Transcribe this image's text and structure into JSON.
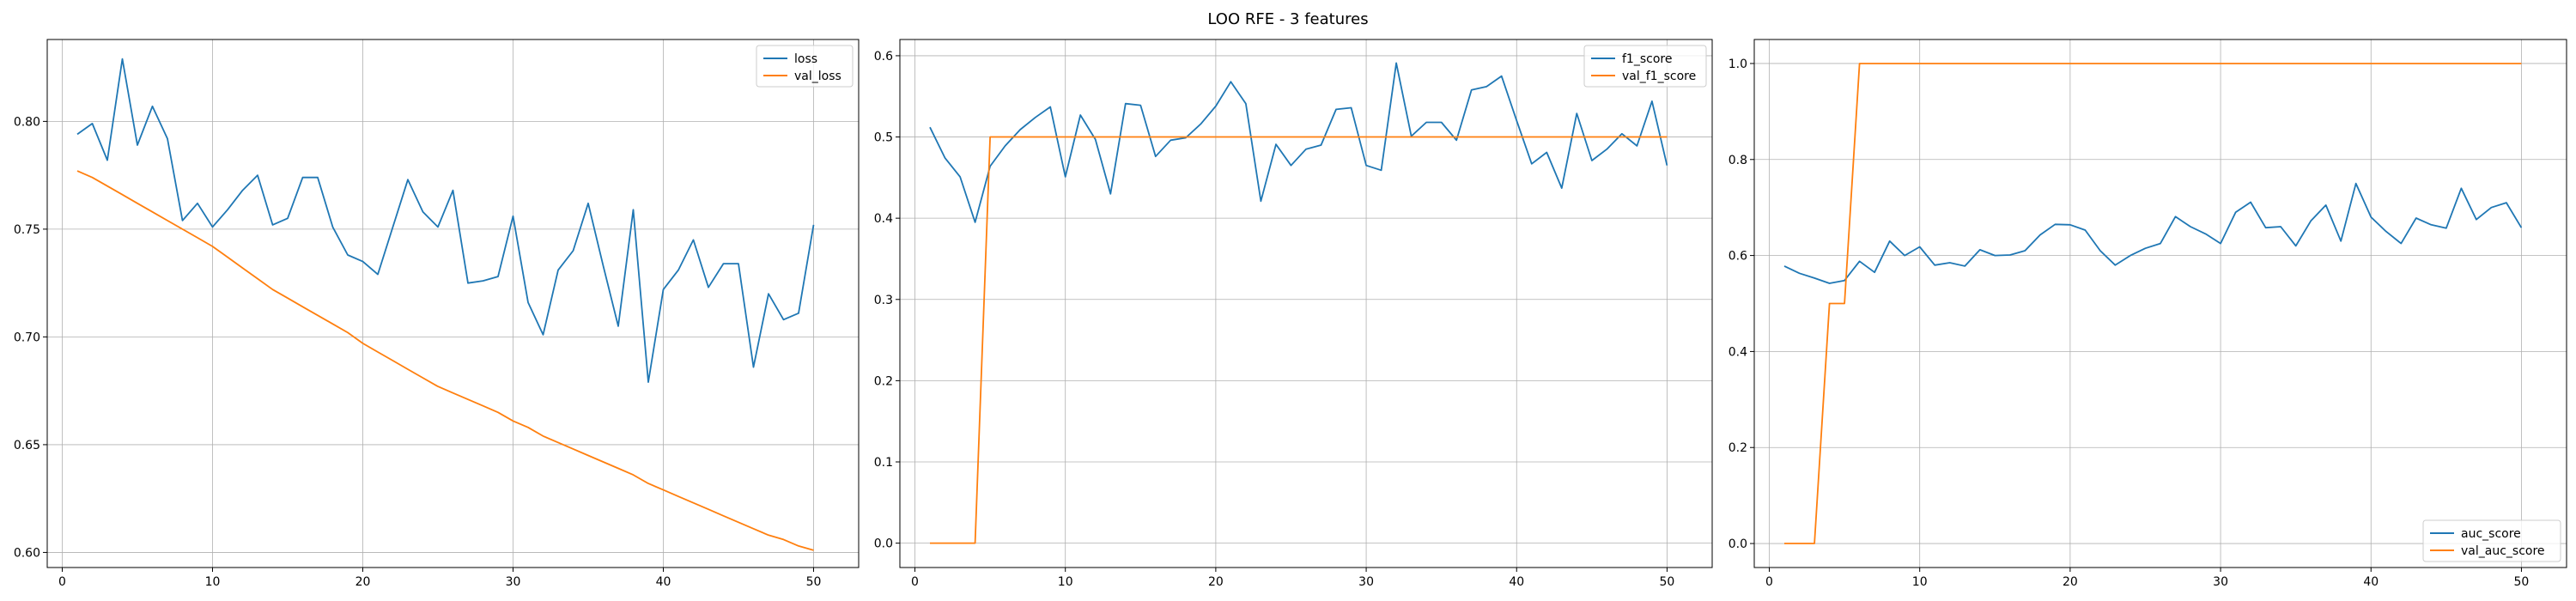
{
  "figure": {
    "title": "LOO RFE - 3 features"
  },
  "colors": {
    "series1": "#1f77b4",
    "series2": "#ff7f0e"
  },
  "chart_data": [
    {
      "type": "line",
      "xlim": [
        -1,
        53
      ],
      "ylim": [
        0.593,
        0.838
      ],
      "xticks": [
        0,
        10,
        20,
        30,
        40,
        50
      ],
      "yticks": [
        0.6,
        0.65,
        0.7,
        0.75,
        0.8
      ],
      "ytick_labels": [
        "0.60",
        "0.65",
        "0.70",
        "0.75",
        "0.80"
      ],
      "grid": true,
      "legend_position": "top-right",
      "x": [
        1,
        2,
        3,
        4,
        5,
        6,
        7,
        8,
        9,
        10,
        11,
        12,
        13,
        14,
        15,
        16,
        17,
        18,
        19,
        20,
        21,
        22,
        23,
        24,
        25,
        26,
        27,
        28,
        29,
        30,
        31,
        32,
        33,
        34,
        35,
        36,
        37,
        38,
        39,
        40,
        41,
        42,
        43,
        44,
        45,
        46,
        47,
        48,
        49,
        50
      ],
      "series": [
        {
          "name": "loss",
          "color": "#1f77b4",
          "values": [
            0.794,
            0.799,
            0.782,
            0.829,
            0.789,
            0.807,
            0.792,
            0.754,
            0.762,
            0.751,
            0.759,
            0.768,
            0.775,
            0.752,
            0.755,
            0.774,
            0.774,
            0.751,
            0.738,
            0.735,
            0.729,
            0.751,
            0.773,
            0.758,
            0.751,
            0.768,
            0.725,
            0.726,
            0.728,
            0.756,
            0.716,
            0.701,
            0.731,
            0.74,
            0.762,
            0.733,
            0.705,
            0.759,
            0.679,
            0.722,
            0.731,
            0.745,
            0.723,
            0.734,
            0.734,
            0.686,
            0.72,
            0.708,
            0.711,
            0.752
          ]
        },
        {
          "name": "val_loss",
          "color": "#ff7f0e",
          "values": [
            0.777,
            0.774,
            0.77,
            0.766,
            0.762,
            0.758,
            0.754,
            0.75,
            0.746,
            0.742,
            0.737,
            0.732,
            0.727,
            0.722,
            0.718,
            0.714,
            0.71,
            0.706,
            0.702,
            0.697,
            0.693,
            0.689,
            0.685,
            0.681,
            0.677,
            0.674,
            0.671,
            0.668,
            0.665,
            0.661,
            0.658,
            0.654,
            0.651,
            0.648,
            0.645,
            0.642,
            0.639,
            0.636,
            0.632,
            0.629,
            0.626,
            0.623,
            0.62,
            0.617,
            0.614,
            0.611,
            0.608,
            0.606,
            0.603,
            0.601
          ]
        }
      ]
    },
    {
      "type": "line",
      "xlim": [
        -1,
        53
      ],
      "ylim": [
        -0.03,
        0.62
      ],
      "xticks": [
        0,
        10,
        20,
        30,
        40,
        50
      ],
      "yticks": [
        0.0,
        0.1,
        0.2,
        0.3,
        0.4,
        0.5,
        0.6
      ],
      "ytick_labels": [
        "0.0",
        "0.1",
        "0.2",
        "0.3",
        "0.4",
        "0.5",
        "0.6"
      ],
      "grid": true,
      "legend_position": "top-right",
      "x": [
        1,
        2,
        3,
        4,
        5,
        6,
        7,
        8,
        9,
        10,
        11,
        12,
        13,
        14,
        15,
        16,
        17,
        18,
        19,
        20,
        21,
        22,
        23,
        24,
        25,
        26,
        27,
        28,
        29,
        30,
        31,
        32,
        33,
        34,
        35,
        36,
        37,
        38,
        39,
        40,
        41,
        42,
        43,
        44,
        45,
        46,
        47,
        48,
        49,
        50
      ],
      "series": [
        {
          "name": "f1_score",
          "color": "#1f77b4",
          "values": [
            0.512,
            0.474,
            0.451,
            0.395,
            0.464,
            0.489,
            0.509,
            0.524,
            0.537,
            0.451,
            0.527,
            0.497,
            0.43,
            0.541,
            0.539,
            0.476,
            0.496,
            0.499,
            0.516,
            0.538,
            0.568,
            0.541,
            0.421,
            0.491,
            0.465,
            0.485,
            0.49,
            0.534,
            0.536,
            0.465,
            0.459,
            0.591,
            0.501,
            0.518,
            0.518,
            0.496,
            0.558,
            0.562,
            0.575,
            0.52,
            0.467,
            0.481,
            0.437,
            0.529,
            0.471,
            0.485,
            0.504,
            0.489,
            0.544,
            0.465
          ]
        },
        {
          "name": "val_f1_score",
          "color": "#ff7f0e",
          "values": [
            0.0,
            0.0,
            0.0,
            0.0,
            0.5,
            0.5,
            0.5,
            0.5,
            0.5,
            0.5,
            0.5,
            0.5,
            0.5,
            0.5,
            0.5,
            0.5,
            0.5,
            0.5,
            0.5,
            0.5,
            0.5,
            0.5,
            0.5,
            0.5,
            0.5,
            0.5,
            0.5,
            0.5,
            0.5,
            0.5,
            0.5,
            0.5,
            0.5,
            0.5,
            0.5,
            0.5,
            0.5,
            0.5,
            0.5,
            0.5,
            0.5,
            0.5,
            0.5,
            0.5,
            0.5,
            0.5,
            0.5,
            0.5,
            0.5,
            0.5
          ]
        }
      ]
    },
    {
      "type": "line",
      "xlim": [
        -1,
        53
      ],
      "ylim": [
        -0.05,
        1.05
      ],
      "xticks": [
        0,
        10,
        20,
        30,
        40,
        50
      ],
      "yticks": [
        0.0,
        0.2,
        0.4,
        0.6,
        0.8,
        1.0
      ],
      "ytick_labels": [
        "0.0",
        "0.2",
        "0.4",
        "0.6",
        "0.8",
        "1.0"
      ],
      "grid": true,
      "legend_position": "bottom-right",
      "x": [
        1,
        2,
        3,
        4,
        5,
        6,
        7,
        8,
        9,
        10,
        11,
        12,
        13,
        14,
        15,
        16,
        17,
        18,
        19,
        20,
        21,
        22,
        23,
        24,
        25,
        26,
        27,
        28,
        29,
        30,
        31,
        32,
        33,
        34,
        35,
        36,
        37,
        38,
        39,
        40,
        41,
        42,
        43,
        44,
        45,
        46,
        47,
        48,
        49,
        50
      ],
      "series": [
        {
          "name": "auc_score",
          "color": "#1f77b4",
          "values": [
            0.578,
            0.563,
            0.553,
            0.542,
            0.548,
            0.588,
            0.565,
            0.63,
            0.6,
            0.618,
            0.58,
            0.585,
            0.578,
            0.612,
            0.6,
            0.601,
            0.61,
            0.643,
            0.665,
            0.664,
            0.653,
            0.61,
            0.58,
            0.6,
            0.615,
            0.625,
            0.681,
            0.66,
            0.645,
            0.625,
            0.69,
            0.711,
            0.658,
            0.66,
            0.62,
            0.672,
            0.705,
            0.63,
            0.75,
            0.68,
            0.65,
            0.625,
            0.678,
            0.664,
            0.657,
            0.74,
            0.675,
            0.7,
            0.71,
            0.658
          ]
        },
        {
          "name": "val_auc_score",
          "color": "#ff7f0e",
          "values": [
            0.0,
            0.0,
            0.0,
            0.5,
            0.5,
            1.0,
            1.0,
            1.0,
            1.0,
            1.0,
            1.0,
            1.0,
            1.0,
            1.0,
            1.0,
            1.0,
            1.0,
            1.0,
            1.0,
            1.0,
            1.0,
            1.0,
            1.0,
            1.0,
            1.0,
            1.0,
            1.0,
            1.0,
            1.0,
            1.0,
            1.0,
            1.0,
            1.0,
            1.0,
            1.0,
            1.0,
            1.0,
            1.0,
            1.0,
            1.0,
            1.0,
            1.0,
            1.0,
            1.0,
            1.0,
            1.0,
            1.0,
            1.0,
            1.0,
            1.0
          ]
        }
      ]
    }
  ]
}
